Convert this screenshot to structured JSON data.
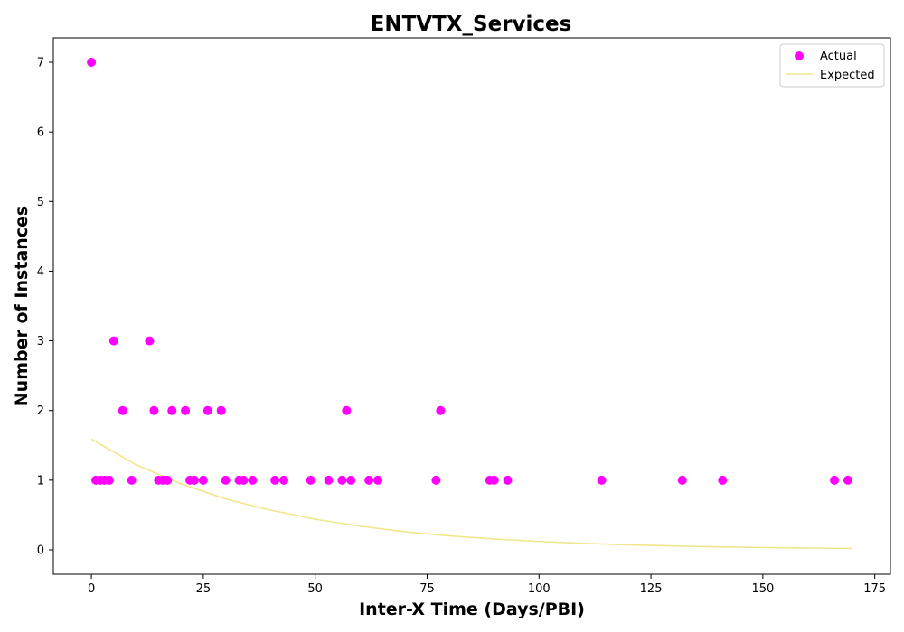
{
  "chart_data": {
    "type": "scatter",
    "title": "ENTVTX_Services",
    "xlabel": "Inter-X Time (Days/PBI)",
    "ylabel": "Number of Instances",
    "xlim": [
      -8.5,
      178.5
    ],
    "ylim": [
      -0.35,
      7.35
    ],
    "x_ticks": [
      0,
      25,
      50,
      75,
      100,
      125,
      150,
      175
    ],
    "y_ticks": [
      0,
      1,
      2,
      3,
      4,
      5,
      6,
      7
    ],
    "grid": false,
    "legend": {
      "position": "top-right",
      "entries": [
        "Actual",
        "Expected"
      ]
    },
    "series": [
      {
        "name": "Actual",
        "kind": "scatter",
        "color": "#ff00ff",
        "points": [
          [
            0,
            7
          ],
          [
            1,
            1
          ],
          [
            2,
            1
          ],
          [
            3,
            1
          ],
          [
            4,
            1
          ],
          [
            5,
            3
          ],
          [
            7,
            2
          ],
          [
            9,
            1
          ],
          [
            13,
            3
          ],
          [
            14,
            2
          ],
          [
            15,
            1
          ],
          [
            16,
            1
          ],
          [
            17,
            1
          ],
          [
            18,
            2
          ],
          [
            21,
            2
          ],
          [
            22,
            1
          ],
          [
            23,
            1
          ],
          [
            25,
            1
          ],
          [
            26,
            2
          ],
          [
            29,
            2
          ],
          [
            30,
            1
          ],
          [
            33,
            1
          ],
          [
            34,
            1
          ],
          [
            36,
            1
          ],
          [
            41,
            1
          ],
          [
            43,
            1
          ],
          [
            49,
            1
          ],
          [
            53,
            1
          ],
          [
            56,
            1
          ],
          [
            57,
            2
          ],
          [
            58,
            1
          ],
          [
            62,
            1
          ],
          [
            64,
            1
          ],
          [
            77,
            1
          ],
          [
            78,
            2
          ],
          [
            89,
            1
          ],
          [
            90,
            1
          ],
          [
            93,
            1
          ],
          [
            114,
            1
          ],
          [
            132,
            1
          ],
          [
            141,
            1
          ],
          [
            166,
            1
          ],
          [
            169,
            1
          ]
        ]
      },
      {
        "name": "Expected",
        "kind": "line",
        "color": "#f0e68c",
        "points": [
          [
            0,
            1.59
          ],
          [
            10,
            1.22
          ],
          [
            20,
            0.95
          ],
          [
            30,
            0.73
          ],
          [
            40,
            0.57
          ],
          [
            50,
            0.44
          ],
          [
            60,
            0.34
          ],
          [
            70,
            0.26
          ],
          [
            80,
            0.2
          ],
          [
            90,
            0.156
          ],
          [
            100,
            0.12
          ],
          [
            110,
            0.093
          ],
          [
            120,
            0.072
          ],
          [
            130,
            0.056
          ],
          [
            140,
            0.043
          ],
          [
            150,
            0.033
          ],
          [
            160,
            0.026
          ],
          [
            170,
            0.02
          ]
        ]
      }
    ]
  }
}
